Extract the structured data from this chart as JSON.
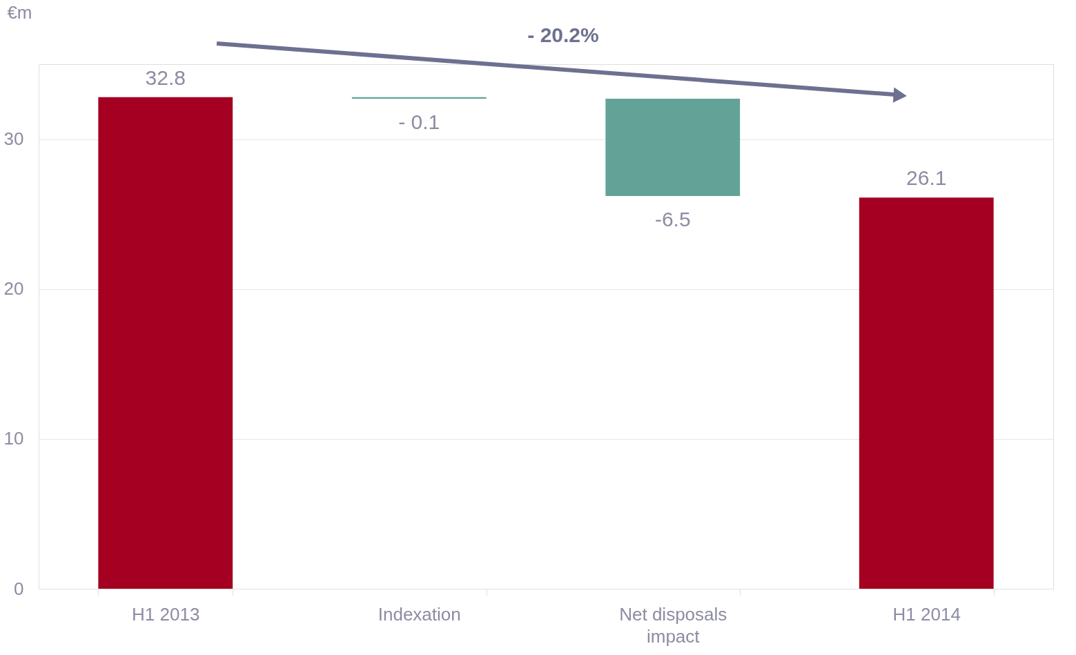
{
  "chart_data": {
    "type": "bar",
    "ylabel": "€m",
    "categories": [
      "H1 2013",
      "Indexation",
      "Net disposals impact",
      "H1 2014"
    ],
    "values": [
      32.8,
      -0.1,
      -6.5,
      26.1
    ],
    "base": [
      0,
      32.8,
      32.7,
      0
    ],
    "colors": [
      "#a50021",
      "#63a397",
      "#63a397",
      "#a50021"
    ],
    "value_labels": [
      "32.8",
      "- 0.1",
      "-6.5",
      "26.1"
    ],
    "ylim": [
      0,
      35
    ],
    "yticks": [
      0,
      10,
      20,
      30
    ],
    "grid": "y",
    "annotations": [
      "- 20.2%"
    ]
  }
}
